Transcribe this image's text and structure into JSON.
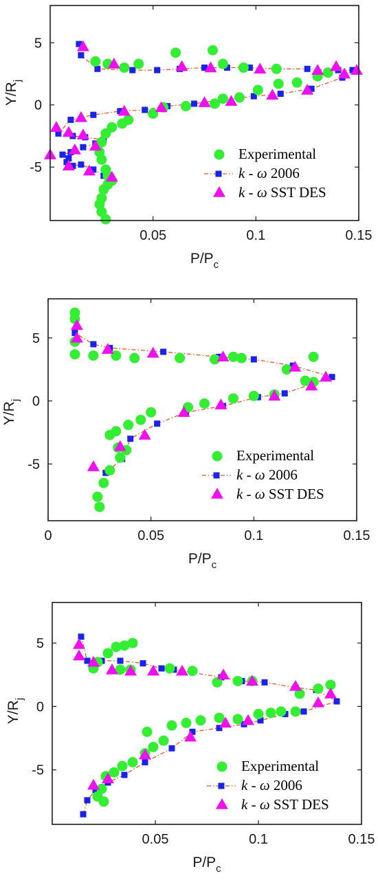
{
  "colors": {
    "experimental": "#33ee33",
    "kw2006_marker": "#1a23e6",
    "kw2006_line": "#e0561e",
    "sstdes": "#ee11ee",
    "axis": "#1a1a1a"
  },
  "legend": {
    "experimental": "Experimental",
    "kw2006_k": "k",
    "kw2006_rest": " - ",
    "kw2006_omega": "ω",
    "kw2006_suffix": " 2006",
    "sstdes_k": "k",
    "sstdes_rest": " - ",
    "sstdes_omega": "ω",
    "sstdes_suffix": " SST DES"
  },
  "chart_data": [
    {
      "type": "scatter",
      "xlabel_main": "P/P",
      "xlabel_sub": "c",
      "ylabel_main": "Y/R",
      "ylabel_sub": "j",
      "xlim": [
        0,
        0.15
      ],
      "ylim": [
        -9.3,
        8
      ],
      "xticks": [
        0.05,
        0.1,
        0.15
      ],
      "xtick_labels": [
        "0.05",
        "0.1",
        "0.15"
      ],
      "yticks": [
        5,
        0,
        -5
      ],
      "ytick_labels": [
        "5",
        "0",
        "-5"
      ],
      "legend_position": "bottom-right",
      "grid": false,
      "series": [
        {
          "name": "Experimental",
          "marker": "circle",
          "points": [
            [
              0.027,
              -9.2
            ],
            [
              0.025,
              -8.6
            ],
            [
              0.024,
              -8.0
            ],
            [
              0.025,
              -7.5
            ],
            [
              0.026,
              -6.8
            ],
            [
              0.028,
              -6.4
            ],
            [
              0.03,
              -6.1
            ],
            [
              0.028,
              -5.7
            ],
            [
              0.027,
              -5.2
            ],
            [
              0.025,
              -4.4
            ],
            [
              0.024,
              -3.8
            ],
            [
              0.025,
              -3.0
            ],
            [
              0.027,
              -2.3
            ],
            [
              0.03,
              -1.8
            ],
            [
              0.035,
              -1.5
            ],
            [
              0.038,
              -1.2
            ],
            [
              0.05,
              -0.7
            ],
            [
              0.055,
              -0.2
            ],
            [
              0.066,
              -0.1
            ],
            [
              0.08,
              0.1
            ],
            [
              0.084,
              0.5
            ],
            [
              0.092,
              0.6
            ],
            [
              0.101,
              1.2
            ],
            [
              0.111,
              1.7
            ],
            [
              0.12,
              1.8
            ],
            [
              0.13,
              2.3
            ],
            [
              0.135,
              2.6
            ],
            [
              0.022,
              3.5
            ],
            [
              0.028,
              3.3
            ],
            [
              0.036,
              3.0
            ],
            [
              0.043,
              3.3
            ],
            [
              0.061,
              4.2
            ],
            [
              0.079,
              4.4
            ],
            [
              0.084,
              3.3
            ],
            [
              0.094,
              3.0
            ],
            [
              0.11,
              2.9
            ]
          ]
        },
        {
          "name": "k - ω 2006",
          "marker": "square",
          "points": [
            [
              0.026,
              -5.7
            ],
            [
              0.021,
              -5.2
            ],
            [
              0.015,
              -4.8
            ],
            [
              0.011,
              -4.9
            ],
            [
              0.008,
              -4.6
            ],
            [
              0.009,
              -4.3
            ],
            [
              0.006,
              -4.0
            ],
            [
              0.01,
              -3.8
            ],
            [
              0.016,
              -3.4
            ],
            [
              0.022,
              -3.1
            ],
            [
              0.026,
              -2.8
            ],
            [
              0.017,
              -2.6
            ],
            [
              0.011,
              -2.5
            ],
            [
              0.004,
              -2.3
            ],
            [
              0.01,
              -1.2
            ],
            [
              0.021,
              -0.8
            ],
            [
              0.034,
              -0.5
            ],
            [
              0.046,
              -0.4
            ],
            [
              0.057,
              -0.1
            ],
            [
              0.07,
              0.1
            ],
            [
              0.083,
              0.4
            ],
            [
              0.099,
              0.7
            ],
            [
              0.112,
              0.9
            ],
            [
              0.127,
              1.3
            ],
            [
              0.142,
              2.2
            ],
            [
              0.147,
              2.8
            ],
            [
              0.14,
              2.8
            ],
            [
              0.125,
              2.9
            ],
            [
              0.11,
              2.9
            ],
            [
              0.097,
              3.0
            ],
            [
              0.086,
              3.0
            ],
            [
              0.075,
              3.0
            ],
            [
              0.063,
              2.9
            ],
            [
              0.052,
              2.8
            ],
            [
              0.04,
              2.8
            ],
            [
              0.023,
              2.9
            ],
            [
              0.015,
              4.0
            ],
            [
              0.014,
              4.9
            ]
          ]
        },
        {
          "name": "k - ω SST DES",
          "marker": "triangle",
          "points": [
            [
              0.03,
              -5.8
            ],
            [
              0.019,
              -5.3
            ],
            [
              0.009,
              -4.9
            ],
            [
              0.0,
              -4.0
            ],
            [
              0.012,
              -3.6
            ],
            [
              0.022,
              -3.3
            ],
            [
              0.016,
              -2.4
            ],
            [
              0.009,
              -2.2
            ],
            [
              0.003,
              -1.8
            ],
            [
              0.015,
              -1.0
            ],
            [
              0.036,
              -0.5
            ],
            [
              0.054,
              -0.2
            ],
            [
              0.075,
              0.2
            ],
            [
              0.088,
              0.3
            ],
            [
              0.108,
              0.8
            ],
            [
              0.125,
              1.2
            ],
            [
              0.143,
              2.5
            ],
            [
              0.149,
              2.8
            ],
            [
              0.139,
              3.1
            ],
            [
              0.13,
              2.8
            ],
            [
              0.102,
              2.9
            ],
            [
              0.078,
              3.0
            ],
            [
              0.064,
              3.1
            ],
            [
              0.031,
              3.3
            ],
            [
              0.016,
              4.7
            ]
          ]
        }
      ]
    },
    {
      "type": "scatter",
      "xlabel_main": "P/P",
      "xlabel_sub": "c",
      "ylabel_main": "Y/R",
      "ylabel_sub": "j",
      "xlim": [
        0,
        0.15
      ],
      "ylim": [
        -9.5,
        8.1
      ],
      "xticks": [
        0,
        0.05,
        0.1,
        0.15
      ],
      "xtick_labels": [
        "0",
        "0.05",
        "0.1",
        "0.15"
      ],
      "yticks": [
        5,
        0,
        -5
      ],
      "ytick_labels": [
        "5",
        "0",
        "-5"
      ],
      "legend_position": "bottom-right",
      "grid": false,
      "series": [
        {
          "name": "Experimental",
          "marker": "circle",
          "points": [
            [
              0.025,
              -8.4
            ],
            [
              0.024,
              -7.6
            ],
            [
              0.027,
              -6.5
            ],
            [
              0.03,
              -5.5
            ],
            [
              0.035,
              -4.5
            ],
            [
              0.038,
              -3.9
            ],
            [
              0.034,
              -3.7
            ],
            [
              0.033,
              -2.4
            ],
            [
              0.03,
              -2.7
            ],
            [
              0.039,
              -1.9
            ],
            [
              0.045,
              -1.5
            ],
            [
              0.05,
              -0.9
            ],
            [
              0.068,
              -0.5
            ],
            [
              0.076,
              -0.2
            ],
            [
              0.09,
              0.2
            ],
            [
              0.1,
              0.4
            ],
            [
              0.11,
              0.5
            ],
            [
              0.125,
              1.6
            ],
            [
              0.129,
              1.5
            ],
            [
              0.116,
              2.5
            ],
            [
              0.129,
              3.5
            ],
            [
              0.094,
              3.4
            ],
            [
              0.09,
              3.5
            ],
            [
              0.081,
              3.3
            ],
            [
              0.064,
              3.4
            ],
            [
              0.042,
              3.4
            ],
            [
              0.033,
              3.6
            ],
            [
              0.022,
              3.6
            ],
            [
              0.013,
              3.7
            ],
            [
              0.013,
              4.7
            ],
            [
              0.013,
              6.5
            ],
            [
              0.013,
              7.0
            ]
          ]
        },
        {
          "name": "k - ω 2006",
          "marker": "square",
          "points": [
            [
              0.028,
              -5.7
            ],
            [
              0.036,
              -4.6
            ],
            [
              0.04,
              -3.0
            ],
            [
              0.053,
              -1.8
            ],
            [
              0.067,
              -0.9
            ],
            [
              0.085,
              -0.4
            ],
            [
              0.102,
              0.3
            ],
            [
              0.115,
              0.6
            ],
            [
              0.138,
              1.9
            ],
            [
              0.119,
              2.8
            ],
            [
              0.1,
              3.3
            ],
            [
              0.083,
              3.5
            ],
            [
              0.056,
              3.9
            ],
            [
              0.03,
              4.2
            ],
            [
              0.022,
              4.5
            ],
            [
              0.013,
              5.4
            ]
          ]
        },
        {
          "name": "k - ω SST DES",
          "marker": "triangle",
          "points": [
            [
              0.022,
              -5.2
            ],
            [
              0.035,
              -3.6
            ],
            [
              0.047,
              -2.7
            ],
            [
              0.066,
              -0.9
            ],
            [
              0.084,
              -0.3
            ],
            [
              0.11,
              0.4
            ],
            [
              0.128,
              1.2
            ],
            [
              0.135,
              1.9
            ],
            [
              0.12,
              2.7
            ],
            [
              0.085,
              3.5
            ],
            [
              0.051,
              3.8
            ],
            [
              0.029,
              4.1
            ],
            [
              0.014,
              5.0
            ],
            [
              0.014,
              6.0
            ]
          ]
        }
      ]
    },
    {
      "type": "scatter",
      "xlabel_main": "P/P",
      "xlabel_sub": "c",
      "ylabel_main": "Y/R",
      "ylabel_sub": "j",
      "xlim": [
        0,
        0.15
      ],
      "ylim": [
        -9.3,
        8.2
      ],
      "xticks": [
        0.05,
        0.1,
        0.15
      ],
      "xtick_labels": [
        "0.05",
        "0.1",
        "0.15"
      ],
      "yticks": [
        5,
        0,
        -5
      ],
      "ytick_labels": [
        "5",
        "0",
        "-5"
      ],
      "legend_position": "bottom-right",
      "grid": false,
      "series": [
        {
          "name": "Experimental",
          "marker": "circle",
          "points": [
            [
              0.025,
              -7.5
            ],
            [
              0.022,
              -7.1
            ],
            [
              0.024,
              -6.5
            ],
            [
              0.026,
              -5.5
            ],
            [
              0.03,
              -5.2
            ],
            [
              0.034,
              -4.7
            ],
            [
              0.039,
              -4.4
            ],
            [
              0.045,
              -3.7
            ],
            [
              0.049,
              -3.2
            ],
            [
              0.054,
              -2.7
            ],
            [
              0.046,
              -2.0
            ],
            [
              0.058,
              -1.5
            ],
            [
              0.065,
              -1.3
            ],
            [
              0.072,
              -1.1
            ],
            [
              0.081,
              -0.9
            ],
            [
              0.09,
              -1.0
            ],
            [
              0.1,
              -0.6
            ],
            [
              0.106,
              -0.5
            ],
            [
              0.111,
              -0.4
            ],
            [
              0.118,
              -0.4
            ],
            [
              0.12,
              1.0
            ],
            [
              0.129,
              1.4
            ],
            [
              0.135,
              1.7
            ],
            [
              0.08,
              1.9
            ],
            [
              0.09,
              2.0
            ],
            [
              0.097,
              2.0
            ],
            [
              0.068,
              2.8
            ],
            [
              0.057,
              3.0
            ],
            [
              0.038,
              2.9
            ],
            [
              0.033,
              2.9
            ],
            [
              0.02,
              3.0
            ],
            [
              0.022,
              3.5
            ],
            [
              0.027,
              4.2
            ],
            [
              0.031,
              4.7
            ],
            [
              0.035,
              4.8
            ],
            [
              0.039,
              5.0
            ]
          ]
        },
        {
          "name": "k - ω 2006",
          "marker": "square",
          "points": [
            [
              0.015,
              -8.5
            ],
            [
              0.017,
              -7.4
            ],
            [
              0.021,
              -6.6
            ],
            [
              0.027,
              -6.0
            ],
            [
              0.035,
              -5.4
            ],
            [
              0.045,
              -4.4
            ],
            [
              0.058,
              -3.3
            ],
            [
              0.068,
              -2.0
            ],
            [
              0.081,
              -1.7
            ],
            [
              0.093,
              -1.4
            ],
            [
              0.101,
              -1.1
            ],
            [
              0.113,
              -0.6
            ],
            [
              0.122,
              -0.4
            ],
            [
              0.138,
              0.4
            ],
            [
              0.128,
              1.3
            ],
            [
              0.118,
              1.5
            ],
            [
              0.103,
              1.9
            ],
            [
              0.092,
              2.0
            ],
            [
              0.082,
              2.3
            ],
            [
              0.059,
              2.9
            ],
            [
              0.053,
              3.0
            ],
            [
              0.044,
              3.4
            ],
            [
              0.033,
              3.6
            ],
            [
              0.024,
              3.6
            ],
            [
              0.017,
              3.6
            ],
            [
              0.014,
              5.5
            ]
          ]
        },
        {
          "name": "k - ω SST DES",
          "marker": "triangle",
          "points": [
            [
              0.02,
              -6.2
            ],
            [
              0.027,
              -5.7
            ],
            [
              0.045,
              -3.8
            ],
            [
              0.067,
              -2.4
            ],
            [
              0.084,
              -1.3
            ],
            [
              0.095,
              -1.1
            ],
            [
              0.129,
              0.3
            ],
            [
              0.135,
              1.0
            ],
            [
              0.118,
              1.6
            ],
            [
              0.097,
              2.0
            ],
            [
              0.083,
              2.5
            ],
            [
              0.063,
              2.8
            ],
            [
              0.049,
              2.8
            ],
            [
              0.038,
              2.8
            ],
            [
              0.029,
              2.9
            ],
            [
              0.02,
              3.5
            ],
            [
              0.013,
              4.0
            ],
            [
              0.013,
              4.9
            ]
          ]
        }
      ]
    }
  ]
}
